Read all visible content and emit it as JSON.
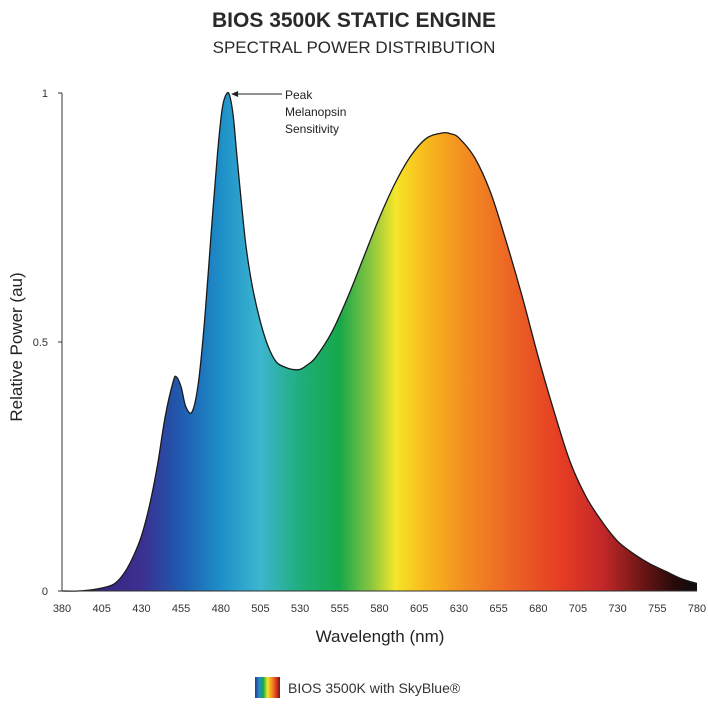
{
  "chart_data": {
    "type": "area",
    "title": "BIOS 3500K STATIC ENGINE",
    "subtitle": "SPECTRAL POWER DISTRIBUTION",
    "xlabel": "Wavelength (nm)",
    "ylabel": "Relative Power (au)",
    "xlim": [
      380,
      780
    ],
    "ylim": [
      0,
      1
    ],
    "x_ticks": [
      "380",
      "405",
      "430",
      "455",
      "480",
      "505",
      "530",
      "555",
      "580",
      "605",
      "630",
      "655",
      "680",
      "705",
      "730",
      "755",
      "780"
    ],
    "y_ticks": [
      "0",
      "0.5",
      "1"
    ],
    "grid": false,
    "legend_position": "bottom-center",
    "series": [
      {
        "name": "BIOS 3500K with SkyBlue®",
        "x": [
          380,
          390,
          400,
          410,
          415,
          420,
          425,
          430,
          435,
          440,
          445,
          450,
          452,
          455,
          458,
          462,
          466,
          470,
          474,
          478,
          481,
          484,
          486,
          488,
          490,
          493,
          496,
          500,
          505,
          510,
          515,
          520,
          525,
          530,
          535,
          540,
          550,
          560,
          570,
          580,
          590,
          600,
          610,
          620,
          625,
          630,
          640,
          650,
          660,
          670,
          680,
          690,
          700,
          710,
          720,
          730,
          740,
          750,
          760,
          770,
          780
        ],
        "y": [
          0.0,
          0.0,
          0.003,
          0.01,
          0.02,
          0.04,
          0.07,
          0.11,
          0.17,
          0.25,
          0.35,
          0.42,
          0.43,
          0.41,
          0.37,
          0.36,
          0.42,
          0.55,
          0.72,
          0.88,
          0.97,
          1.0,
          0.99,
          0.95,
          0.88,
          0.78,
          0.69,
          0.61,
          0.54,
          0.49,
          0.46,
          0.45,
          0.445,
          0.445,
          0.455,
          0.47,
          0.52,
          0.59,
          0.67,
          0.75,
          0.82,
          0.875,
          0.91,
          0.92,
          0.918,
          0.91,
          0.87,
          0.8,
          0.7,
          0.59,
          0.47,
          0.36,
          0.26,
          0.19,
          0.14,
          0.1,
          0.075,
          0.055,
          0.04,
          0.025,
          0.015
        ]
      }
    ],
    "annotation": {
      "lines": [
        "Peak",
        "Melanopsin",
        "Sensitivity"
      ],
      "x": 484,
      "y": 1.0
    },
    "gradient_stops": [
      {
        "wl": 380,
        "color": "#3a1f78"
      },
      {
        "wl": 430,
        "color": "#3b2f8f"
      },
      {
        "wl": 455,
        "color": "#1f5bb0"
      },
      {
        "wl": 480,
        "color": "#1d8fc8"
      },
      {
        "wl": 505,
        "color": "#3cb6cf"
      },
      {
        "wl": 530,
        "color": "#1fae7c"
      },
      {
        "wl": 555,
        "color": "#16a84a"
      },
      {
        "wl": 575,
        "color": "#8cc63f"
      },
      {
        "wl": 590,
        "color": "#f4e62a"
      },
      {
        "wl": 605,
        "color": "#f8c21d"
      },
      {
        "wl": 630,
        "color": "#f39321"
      },
      {
        "wl": 665,
        "color": "#ec6124"
      },
      {
        "wl": 695,
        "color": "#e53c23"
      },
      {
        "wl": 720,
        "color": "#c5282a"
      },
      {
        "wl": 745,
        "color": "#6e1616"
      },
      {
        "wl": 765,
        "color": "#2a0a0a"
      },
      {
        "wl": 780,
        "color": "#0d0d0d"
      }
    ],
    "outline_color": "#1a1a1a"
  }
}
